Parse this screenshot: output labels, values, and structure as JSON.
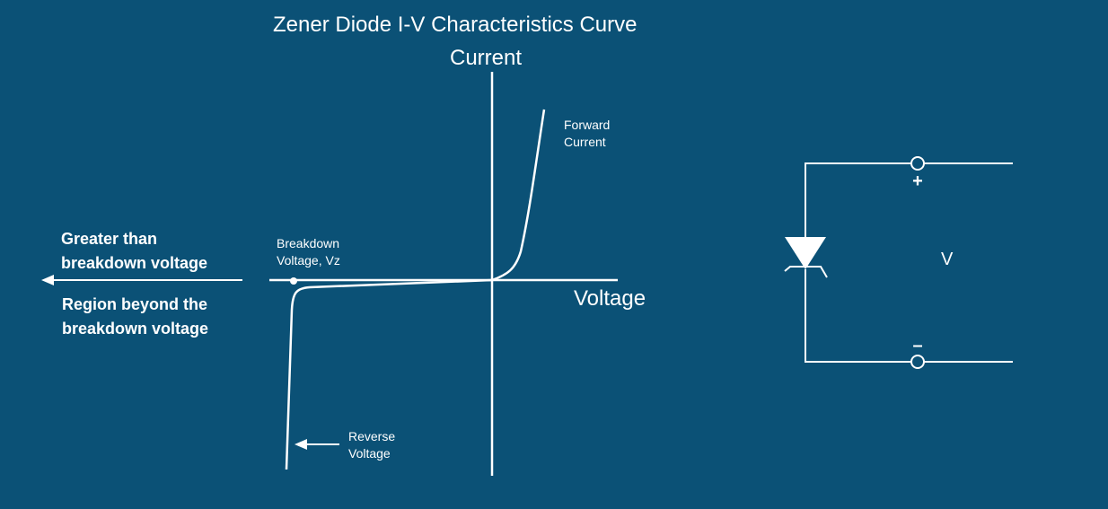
{
  "title": "Zener Diode I-V Characteristics Curve",
  "axes": {
    "y_label": "Current",
    "x_label": "Voltage"
  },
  "annotations": {
    "forward_current": [
      "Forward",
      "Current"
    ],
    "breakdown_voltage": [
      "Breakdown",
      "Voltage, Vz"
    ],
    "reverse_voltage": [
      "Reverse",
      "Voltage"
    ],
    "greater_than": [
      "Greater than",
      "breakdown voltage"
    ],
    "region_beyond": [
      "Region beyond the",
      "breakdown voltage"
    ]
  },
  "circuit": {
    "voltage_label": "V",
    "positive_terminal": "+",
    "negative_terminal": "–",
    "component": "zener-diode"
  },
  "colors": {
    "background": "#0b5176",
    "foreground": "#ffffff"
  }
}
